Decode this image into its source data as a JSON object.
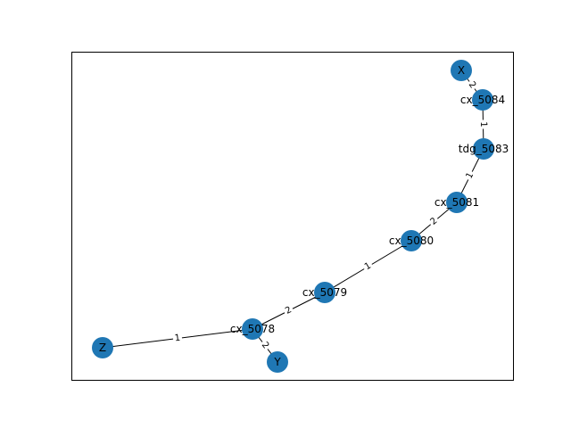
{
  "colors": {
    "node": "#1f77b4",
    "edge": "#000000",
    "background": "#ffffff"
  },
  "nodes": [
    {
      "id": "X",
      "label": "X"
    },
    {
      "id": "cx_5084",
      "label": "cx_5084"
    },
    {
      "id": "tdg_5083",
      "label": "tdg_5083"
    },
    {
      "id": "cx_5081",
      "label": "cx_5081"
    },
    {
      "id": "cx_5080",
      "label": "cx_5080"
    },
    {
      "id": "cx_5079",
      "label": "cx_5079"
    },
    {
      "id": "cx_5078",
      "label": "cx_5078"
    },
    {
      "id": "Z",
      "label": "Z"
    },
    {
      "id": "Y",
      "label": "Y"
    }
  ],
  "edges": [
    {
      "source": "X",
      "target": "cx_5084",
      "label": "2"
    },
    {
      "source": "cx_5084",
      "target": "tdg_5083",
      "label": "1"
    },
    {
      "source": "tdg_5083",
      "target": "cx_5081",
      "label": "1"
    },
    {
      "source": "cx_5081",
      "target": "cx_5080",
      "label": "2"
    },
    {
      "source": "cx_5080",
      "target": "cx_5079",
      "label": "1"
    },
    {
      "source": "cx_5079",
      "target": "cx_5078",
      "label": "2"
    },
    {
      "source": "cx_5078",
      "target": "Z",
      "label": "1"
    },
    {
      "source": "cx_5078",
      "target": "Y",
      "label": "2"
    }
  ]
}
